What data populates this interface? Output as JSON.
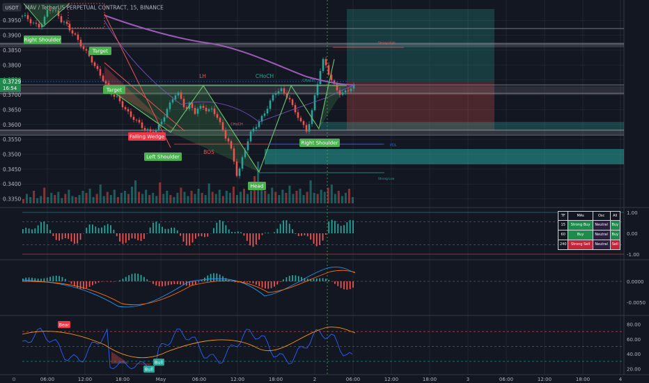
{
  "header": {
    "symbol_badge": "USDT",
    "title": "MAV / TetherUS PERPETUAL CONTRACT, 15, BINANCE"
  },
  "price_box": {
    "price": "0.3729",
    "countdown": "16:54"
  },
  "colors": {
    "bg": "#131722",
    "green": "#26a69a",
    "red": "#ef5350",
    "label_green": "#4caf50",
    "label_red": "#f23645",
    "purple": "#9c5bb5",
    "grid": "#2a2e39",
    "text": "#b2b5be"
  },
  "chart_data": [
    {
      "type": "candlestick",
      "title": "MAV / TetherUS PERPETUAL CONTRACT, 15, BINANCE",
      "ylim": [
        0.3335,
        0.3995
      ],
      "y_ticks": [
        "0.3950",
        "0.3900",
        "0.3850",
        "0.3800",
        "0.3750",
        "0.3700",
        "0.3650",
        "0.3600",
        "0.3550",
        "0.3500",
        "0.3450",
        "0.3400",
        "0.3350"
      ],
      "x_ticks": [
        "06:00",
        "12:00",
        "18:00",
        "May",
        "06:00",
        "12:00",
        "18:00",
        "2",
        "06:00",
        "12:00",
        "18:00",
        "3",
        "06:00",
        "12:00",
        "18:00",
        "4"
      ],
      "close_path": [
        [
          0.3965,
          0.396
        ],
        [
          0.3945,
          0.3935
        ],
        [
          0.393,
          0.395
        ],
        [
          0.399,
          0.3985
        ],
        [
          0.3975,
          0.395
        ],
        [
          0.394,
          0.392
        ],
        [
          0.3905,
          0.388
        ],
        [
          0.386,
          0.384
        ],
        [
          0.382,
          0.379
        ],
        [
          0.377,
          0.3745
        ],
        [
          0.372,
          0.37
        ],
        [
          0.369,
          0.367
        ],
        [
          0.365,
          0.363
        ],
        [
          0.362,
          0.3605
        ],
        [
          0.359,
          0.358
        ],
        [
          0.3572,
          0.358
        ],
        [
          0.36,
          0.363
        ],
        [
          0.366,
          0.369
        ],
        [
          0.371,
          0.368
        ],
        [
          0.365,
          0.367
        ],
        [
          0.364,
          0.3655
        ],
        [
          0.366,
          0.3645
        ],
        [
          0.365,
          0.3635
        ],
        [
          0.36,
          0.3565
        ],
        [
          0.354,
          0.349
        ],
        [
          0.342,
          0.348
        ],
        [
          0.353,
          0.357
        ],
        [
          0.359,
          0.361
        ],
        [
          0.363,
          0.366
        ],
        [
          0.369,
          0.371
        ],
        [
          0.372,
          0.37
        ],
        [
          0.369,
          0.365
        ],
        [
          0.363,
          0.36
        ],
        [
          0.358,
          0.362
        ],
        [
          0.37,
          0.377
        ],
        [
          0.382,
          0.378
        ],
        [
          0.374,
          0.372
        ],
        [
          0.37,
          0.371
        ],
        [
          0.372,
          0.3729
        ]
      ],
      "volume": [
        4,
        9,
        6,
        12,
        5,
        7,
        15,
        6,
        10,
        8,
        11,
        5,
        9,
        13,
        7,
        6,
        8,
        12,
        10,
        14,
        6,
        9,
        18,
        7,
        11,
        8,
        13,
        6,
        10,
        12,
        9,
        16,
        22,
        11,
        9,
        13,
        8,
        10,
        7,
        20,
        9,
        12,
        8,
        6,
        10,
        15,
        11,
        7,
        12,
        9,
        14,
        10,
        8,
        19,
        11,
        9,
        13,
        7,
        12,
        10,
        16,
        8,
        11,
        14,
        9,
        12,
        26,
        40,
        18,
        12,
        9,
        15,
        11,
        8,
        13,
        10,
        17,
        9,
        12,
        14,
        8,
        11,
        22,
        10,
        9,
        13,
        11,
        15,
        18,
        9,
        12,
        7,
        10,
        14,
        6
      ],
      "annotations": {
        "right_shoulder_top": "Right Shoulder",
        "target_1": "Target",
        "target_2": "Target",
        "falling_wedge": "Falling Wedge",
        "left_shoulder": "Left Shoulder",
        "head": "Head",
        "right_shoulder": "Right Shoulder",
        "lh": "LH",
        "choch": "CHoCH",
        "choch_small": "CHoCH",
        "choch_small_2": "CHoCH",
        "bos": "BOS",
        "pdl": "PDL",
        "strong_high": "Strong High",
        "strong_low": "Strong Low"
      }
    },
    {
      "type": "histogram",
      "name": "Oscillator pane 1",
      "y_ticks": [
        "1.00",
        "0.00",
        "-1.00"
      ],
      "ylim": [
        -1.1,
        1.1
      ]
    },
    {
      "type": "line",
      "name": "MACD pane",
      "y_ticks": [
        "0.0000",
        "-0.0050"
      ]
    },
    {
      "type": "line",
      "name": "RSI pane",
      "y_ticks": [
        "80.00",
        "60.00",
        "40.00",
        "20.00"
      ],
      "ylim": [
        15,
        85
      ],
      "labels": {
        "bear": "Bear",
        "bull": "Bull",
        "bull2": "Bull"
      }
    }
  ],
  "ta_table": {
    "headers": [
      "TF",
      "MAs",
      "Osc",
      "All"
    ],
    "rows": [
      [
        "15",
        "Strong Buy",
        "Neutral",
        "Buy"
      ],
      [
        "60",
        "Buy",
        "Neutral",
        "Buy"
      ],
      [
        "240",
        "Strong Sell",
        "Neutral",
        "Sell"
      ]
    ]
  }
}
